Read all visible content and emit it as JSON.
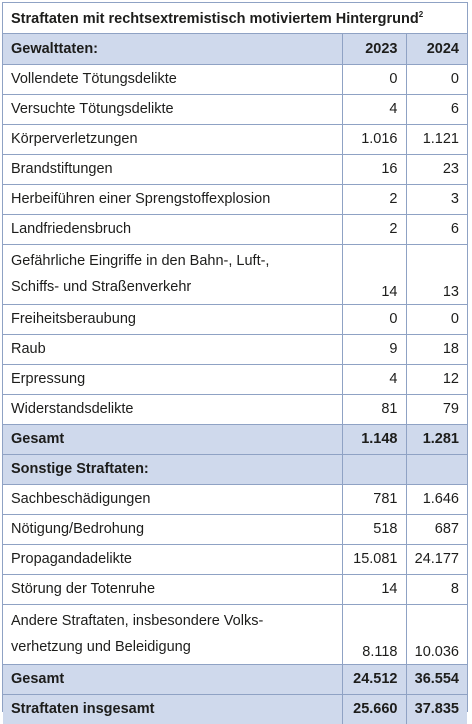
{
  "title": "Straftaten mit rechtsextremistisch motiviertem Hintergrund",
  "title_footnote": "2",
  "header": {
    "section": "Gewalttaten:",
    "year1": "2023",
    "year2": "2024"
  },
  "violent": [
    {
      "label": "Vollendete Tötungsdelikte",
      "v2023": "0",
      "v2024": "0"
    },
    {
      "label": "Versuchte Tötungsdelikte",
      "v2023": "4",
      "v2024": "6"
    },
    {
      "label": "Körperverletzungen",
      "v2023": "1.016",
      "v2024": "1.121"
    },
    {
      "label": "Brandstiftungen",
      "v2023": "16",
      "v2024": "23"
    },
    {
      "label": "Herbeiführen einer Sprengstoffexplosion",
      "v2023": "2",
      "v2024": "3"
    },
    {
      "label": "Landfriedensbruch",
      "v2023": "2",
      "v2024": "6"
    },
    {
      "label": "Gefährliche Eingriffe in den Bahn-, Luft-, Schiffs- und Straßenverkehr",
      "label_line1": "Gefährliche Eingriffe in den Bahn-, Luft-,",
      "label_line2": "Schiffs- und Straßenverkehr",
      "v2023": "14",
      "v2024": "13"
    },
    {
      "label": "Freiheitsberaubung",
      "v2023": "0",
      "v2024": "0"
    },
    {
      "label": "Raub",
      "v2023": "9",
      "v2024": "18"
    },
    {
      "label": "Erpressung",
      "v2023": "4",
      "v2024": "12"
    },
    {
      "label": "Widerstandsdelikte",
      "v2023": "81",
      "v2024": "79"
    }
  ],
  "violent_total": {
    "label": "Gesamt",
    "v2023": "1.148",
    "v2024": "1.281"
  },
  "other_header": "Sonstige Straftaten:",
  "other": [
    {
      "label": "Sachbeschädigungen",
      "v2023": "781",
      "v2024": "1.646"
    },
    {
      "label": "Nötigung/Bedrohung",
      "v2023": "518",
      "v2024": "687"
    },
    {
      "label": "Propagandadelikte",
      "v2023": "15.081",
      "v2024": "24.177"
    },
    {
      "label": "Störung der Totenruhe",
      "v2023": "14",
      "v2024": "8"
    },
    {
      "label": "Andere Straftaten, insbesondere Volksverhetzung und Beleidigung",
      "label_line1": "Andere Straftaten, insbesondere Volks-",
      "label_line2": "verhetzung und Beleidigung",
      "v2023": "8.118",
      "v2024": "10.036"
    }
  ],
  "other_total": {
    "label": "Gesamt",
    "v2023": "24.512",
    "v2024": "36.554"
  },
  "grand_total": {
    "label": "Straftaten insgesamt",
    "v2023": "25.660",
    "v2024": "37.835"
  }
}
